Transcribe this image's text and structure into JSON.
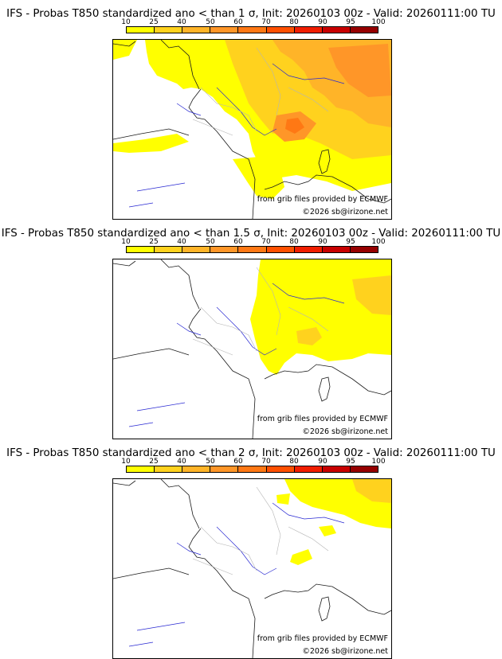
{
  "colors": {
    "levels": [
      "#ffff00",
      "#ffd21e",
      "#ffb428",
      "#ff9628",
      "#ff7814",
      "#ff5000",
      "#f01e00",
      "#c80000",
      "#960000",
      "#640000"
    ],
    "coast": "#1a1a1a",
    "rivers": "#2828d2",
    "borders": "#b4b4b4"
  },
  "legend": {
    "ticks": [
      "10",
      "25",
      "40",
      "50",
      "60",
      "70",
      "80",
      "90",
      "95",
      "100"
    ]
  },
  "panels": [
    {
      "title": "IFS - Probas T850  standardized ano < than 1 σ, Init: 20260103 00z - Valid: 20260111:00 TU",
      "credit_source": "from grib files provided by ECMWF",
      "credit_copyright": "©2026 sb@irizone.net"
    },
    {
      "title": "IFS - Probas T850  standardized ano < than 1.5 σ, Init: 20260103 00z - Valid: 20260111:00 TU",
      "credit_source": "from grib files provided by ECMWF",
      "credit_copyright": "©2026 sb@irizone.net"
    },
    {
      "title": "IFS - Probas T850  standardized ano < than 2 σ, Init: 20260103 00z - Valid: 20260111:00 TU",
      "credit_source": "from grib files provided by ECMWF",
      "credit_copyright": "©2026 sb@irizone.net"
    }
  ]
}
